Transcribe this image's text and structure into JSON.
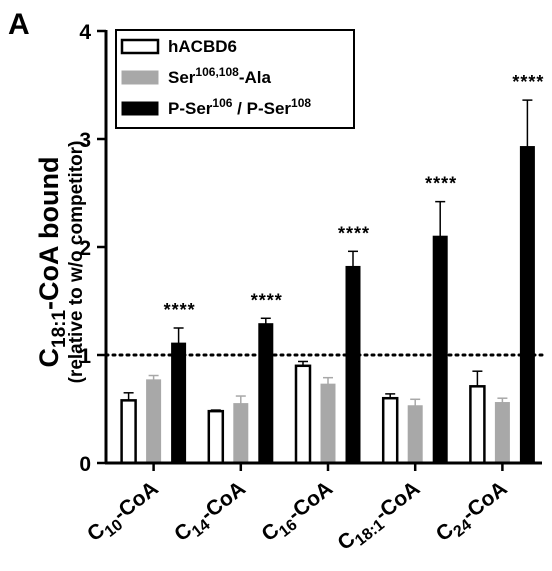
{
  "panel_label": "A",
  "chart_data": {
    "type": "bar",
    "title": "",
    "ylabel": {
      "main_prefix": "C",
      "main_sub": "18:1",
      "main_suffix": "-CoA bound",
      "secondary": "(relative to w/o competitor)"
    },
    "xlabel": "",
    "ylim": [
      0,
      4
    ],
    "yticks": [
      "0",
      "1",
      "2",
      "3",
      "4"
    ],
    "reference_line": 1,
    "grid": false,
    "legend_position": "top-left",
    "categories": [
      {
        "pre": "C",
        "sub": "10",
        "post": "-CoA"
      },
      {
        "pre": "C",
        "sub": "14",
        "post": "-CoA"
      },
      {
        "pre": "C",
        "sub": "16",
        "post": "-CoA"
      },
      {
        "pre": "C",
        "sub": "18:1",
        "post": "-CoA"
      },
      {
        "pre": "C",
        "sub": "24",
        "post": "-CoA"
      }
    ],
    "series": [
      {
        "legend": {
          "parts": [
            {
              "t": "hACBD6"
            }
          ]
        },
        "fill": "#ffffff",
        "stroke": "#000000",
        "values": [
          0.58,
          0.48,
          0.9,
          0.6,
          0.71
        ],
        "errors": [
          0.07,
          0.01,
          0.04,
          0.04,
          0.14
        ]
      },
      {
        "legend": {
          "parts": [
            {
              "t": "Ser"
            },
            {
              "t": "106,108",
              "sup": true
            },
            {
              "t": "-Ala"
            }
          ]
        },
        "fill": "#a8a8a8",
        "stroke": "#a8a8a8",
        "values": [
          0.77,
          0.55,
          0.73,
          0.53,
          0.56
        ],
        "errors": [
          0.04,
          0.07,
          0.06,
          0.06,
          0.04
        ]
      },
      {
        "legend": {
          "parts": [
            {
              "t": "P-Ser"
            },
            {
              "t": "106",
              "sup": true
            },
            {
              "t": " / P-Ser"
            },
            {
              "t": "108",
              "sup": true
            }
          ]
        },
        "fill": "#000000",
        "stroke": "#000000",
        "values": [
          1.11,
          1.29,
          1.82,
          2.1,
          2.93
        ],
        "errors": [
          0.14,
          0.05,
          0.14,
          0.32,
          0.43
        ]
      }
    ],
    "significance": [
      "****",
      "****",
      "****",
      "****",
      "****"
    ]
  }
}
